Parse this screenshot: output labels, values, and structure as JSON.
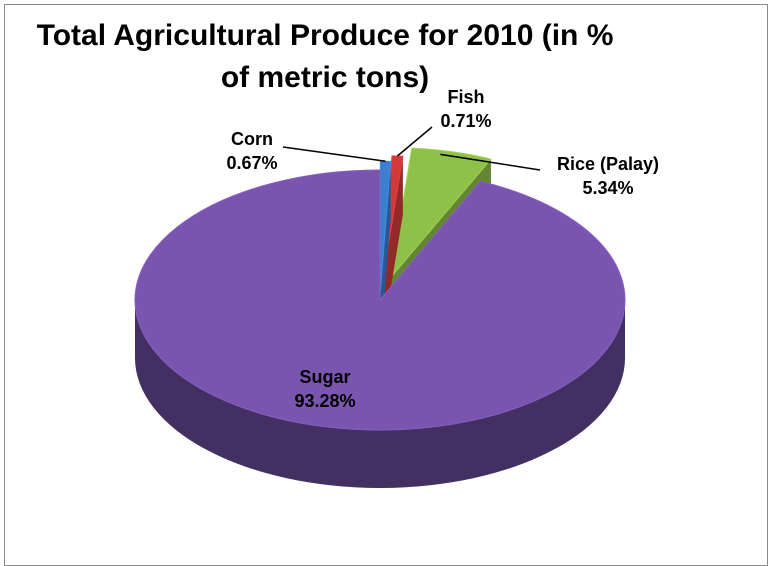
{
  "chart_data": {
    "type": "pie",
    "title_line1": "Total Agricultural Produce for 2010 (in %",
    "title_line2": "of metric tons)",
    "slices": [
      {
        "name": "Sugar",
        "value": 93.28,
        "label": "93.28%",
        "color": "#7a55b0"
      },
      {
        "name": "Corn",
        "value": 0.67,
        "label": "0.67%",
        "color": "#3a7fd0"
      },
      {
        "name": "Fish",
        "value": 0.71,
        "label": "0.71%",
        "color": "#d23a3a"
      },
      {
        "name": "Rice (Palay)",
        "value": 5.34,
        "label": "5.34%",
        "color": "#8fc04a"
      }
    ],
    "legend": "none",
    "style": "3d-exploded"
  }
}
